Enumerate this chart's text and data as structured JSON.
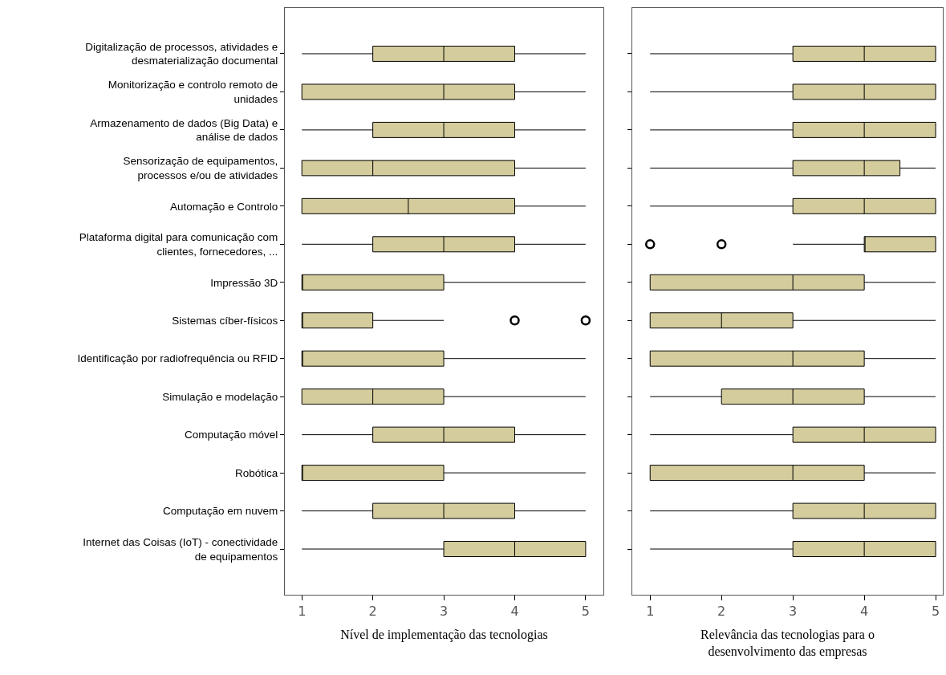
{
  "chart_data": [
    {
      "type": "box",
      "orientation": "horizontal",
      "xlabel": "Nível de implementação das tecnologias",
      "color": "#d4cc9c",
      "xlim": [
        0.76,
        5.25
      ],
      "xticks": [
        1,
        2,
        3,
        4,
        5
      ],
      "grid": false,
      "categories": [
        "Digitalização de processos, atividades e\ndesmaterialização documental",
        "Monitorização e controlo remoto de\nunidades",
        "Armazenamento de dados (Big Data) e\nanálise de dados",
        "Sensorização de equipamentos,\nprocessos e/ou de atividades",
        "Automação e Controlo",
        "Plataforma digital para comunicação com\nclientes, fornecedores, ...",
        "Impressão 3D",
        "Sistemas cíber-físicos",
        "Identificação por radiofrequência ou RFID",
        "Simulação e modelação",
        "Computação móvel",
        "Robótica",
        "Computação em nuvem",
        "Internet das Coisas (IoT) - conectividade\nde equipamentos"
      ],
      "boxes": [
        {
          "low": 1,
          "q1": 2,
          "median": 3,
          "q3": 4,
          "high": 5
        },
        {
          "low": 1,
          "q1": 1,
          "median": 3,
          "q3": 4,
          "high": 5
        },
        {
          "low": 1,
          "q1": 2,
          "median": 3,
          "q3": 4,
          "high": 5
        },
        {
          "low": 1,
          "q1": 1,
          "median": 2,
          "q3": 4,
          "high": 5
        },
        {
          "low": 1,
          "q1": 1,
          "median": 2.5,
          "q3": 4,
          "high": 5
        },
        {
          "low": 1,
          "q1": 2,
          "median": 3,
          "q3": 4,
          "high": 5
        },
        {
          "low": 1,
          "q1": 1,
          "median": 1,
          "q3": 3,
          "high": 5
        },
        {
          "low": 1,
          "q1": 1,
          "median": 1,
          "q3": 2,
          "high": 3,
          "outliers": [
            4,
            5
          ]
        },
        {
          "low": 1,
          "q1": 1,
          "median": 1,
          "q3": 3,
          "high": 5
        },
        {
          "low": 1,
          "q1": 1,
          "median": 2,
          "q3": 3,
          "high": 5
        },
        {
          "low": 1,
          "q1": 2,
          "median": 3,
          "q3": 4,
          "high": 5
        },
        {
          "low": 1,
          "q1": 1,
          "median": 1,
          "q3": 3,
          "high": 5
        },
        {
          "low": 1,
          "q1": 2,
          "median": 3,
          "q3": 4,
          "high": 5
        },
        {
          "low": 1,
          "q1": 3,
          "median": 4,
          "q3": 5,
          "high": 5
        }
      ]
    },
    {
      "type": "box",
      "orientation": "horizontal",
      "xlabel": "Relevância das tecnologias para o\ndesenvolvimento das empresas",
      "color": "#d4cc9c",
      "xlim": [
        0.75,
        5.1
      ],
      "xticks": [
        1,
        2,
        3,
        4,
        5
      ],
      "grid": false,
      "tick_labels": "x",
      "categories": [
        null,
        null,
        null,
        null,
        null,
        null,
        null,
        null,
        null,
        null,
        null,
        null,
        null,
        null
      ],
      "boxes": [
        {
          "low": 1,
          "q1": 3,
          "median": 4,
          "q3": 5,
          "high": 5
        },
        {
          "low": 1,
          "q1": 3,
          "median": 4,
          "q3": 5,
          "high": 5
        },
        {
          "low": 1,
          "q1": 3,
          "median": 4,
          "q3": 5,
          "high": 5
        },
        {
          "low": 1,
          "q1": 3,
          "median": 4,
          "q3": 4.5,
          "high": 5
        },
        {
          "low": 1,
          "q1": 3,
          "median": 4,
          "q3": 5,
          "high": 5
        },
        {
          "low": 3,
          "q1": 4,
          "median": 4,
          "q3": 5,
          "high": 5,
          "outliers": [
            1,
            2
          ]
        },
        {
          "low": 1,
          "q1": 1,
          "median": 3,
          "q3": 4,
          "high": 5
        },
        {
          "low": 1,
          "q1": 1,
          "median": 2,
          "q3": 3,
          "high": 5
        },
        {
          "low": 1,
          "q1": 1,
          "median": 3,
          "q3": 4,
          "high": 5
        },
        {
          "low": 1,
          "q1": 2,
          "median": 3,
          "q3": 4,
          "high": 5
        },
        {
          "low": 1,
          "q1": 3,
          "median": 4,
          "q3": 5,
          "high": 5
        },
        {
          "low": 1,
          "q1": 1,
          "median": 3,
          "q3": 4,
          "high": 5
        },
        {
          "low": 1,
          "q1": 3,
          "median": 4,
          "q3": 5,
          "high": 5
        },
        {
          "low": 1,
          "q1": 3,
          "median": 4,
          "q3": 5,
          "high": 5
        }
      ]
    }
  ]
}
